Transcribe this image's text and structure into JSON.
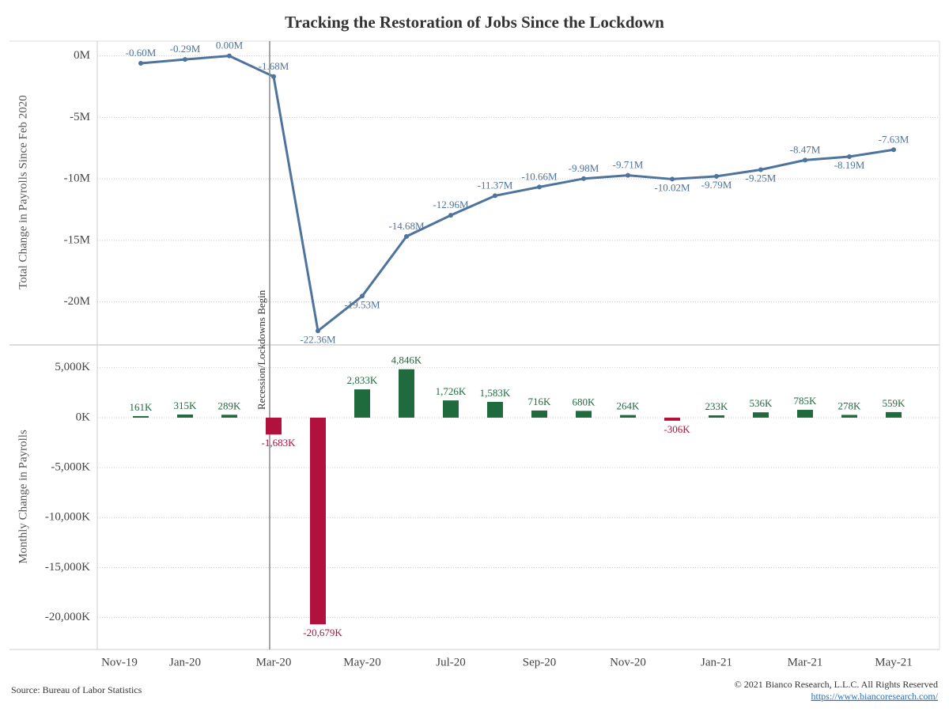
{
  "chart_data": [
    {
      "type": "line",
      "title": "Tracking the Restoration of Jobs Since the Lockdown",
      "y_label": "Total Change in Payrolls Since Feb 2020",
      "categories": [
        "Nov-19",
        null,
        "Jan-20",
        null,
        "Mar-20",
        null,
        "May-20",
        null,
        "Jul-20",
        null,
        "Sep-20",
        null,
        "Nov-20",
        null,
        "Jan-21",
        null,
        "Mar-21",
        null,
        "May-21"
      ],
      "series": [
        {
          "name": "Total Change",
          "color": "#4e739c",
          "values": [
            null,
            -0.6,
            -0.29,
            0,
            -1.68,
            -22.36,
            -19.53,
            -14.68,
            -12.96,
            -11.37,
            -10.66,
            -9.98,
            -9.71,
            -10.02,
            -9.79,
            -9.25,
            -8.47,
            -8.19,
            -7.63
          ],
          "value_labels": [
            null,
            "-0.60M",
            "-0.29M",
            "0.00M",
            "-1.68M",
            "-22.36M",
            "-19.53M",
            "-14.68M",
            "-12.96M",
            "-11.37M",
            "-10.66M",
            "-9.98M",
            "-9.71M",
            "-10.02M",
            "-9.79M",
            "-9.25M",
            "-8.47M",
            "-8.19M",
            "-7.63M"
          ]
        }
      ],
      "ylim": [
        -23.5,
        1.2
      ],
      "yticks": [
        {
          "value": 0,
          "label": "0M"
        },
        {
          "value": -5,
          "label": "-5M"
        },
        {
          "value": -10,
          "label": "-10M"
        },
        {
          "value": -15,
          "label": "-15M"
        },
        {
          "value": -20,
          "label": "-20M"
        }
      ],
      "grid": true,
      "annotation": {
        "text": "Recession/Lockdowns Begin",
        "at": "Mar-20"
      }
    },
    {
      "type": "bar",
      "y_label": "Monthly Change in Payrolls",
      "positive_color": "#1f6b3e",
      "negative_color": "#b0123d",
      "values": [
        null,
        161,
        315,
        289,
        -1683,
        -20679,
        2833,
        4846,
        1726,
        1583,
        716,
        680,
        264,
        -306,
        233,
        536,
        785,
        278,
        559
      ],
      "value_labels": [
        null,
        "161K",
        "315K",
        "289K",
        "-1,683K",
        "-20,679K",
        "2,833K",
        "4,846K",
        "1,726K",
        "1,583K",
        "716K",
        "680K",
        "264K",
        "-306K",
        "233K",
        "536K",
        "785K",
        "278K",
        "559K"
      ],
      "ylim": [
        -23200,
        7200
      ],
      "yticks": [
        {
          "value": 5000,
          "label": "5,000K"
        },
        {
          "value": 0,
          "label": "0K"
        },
        {
          "value": -5000,
          "label": "-5,000K"
        },
        {
          "value": -10000,
          "label": "-10,000K"
        },
        {
          "value": -15000,
          "label": "-15,000K"
        },
        {
          "value": -20000,
          "label": "-20,000K"
        }
      ],
      "grid": true
    }
  ],
  "footer": {
    "source": "Source: Bureau of Labor Statistics",
    "copyright": "© 2021 Bianco Research, L.L.C. All Rights Reserved",
    "url": "https://www.biancoresearch.com/"
  }
}
